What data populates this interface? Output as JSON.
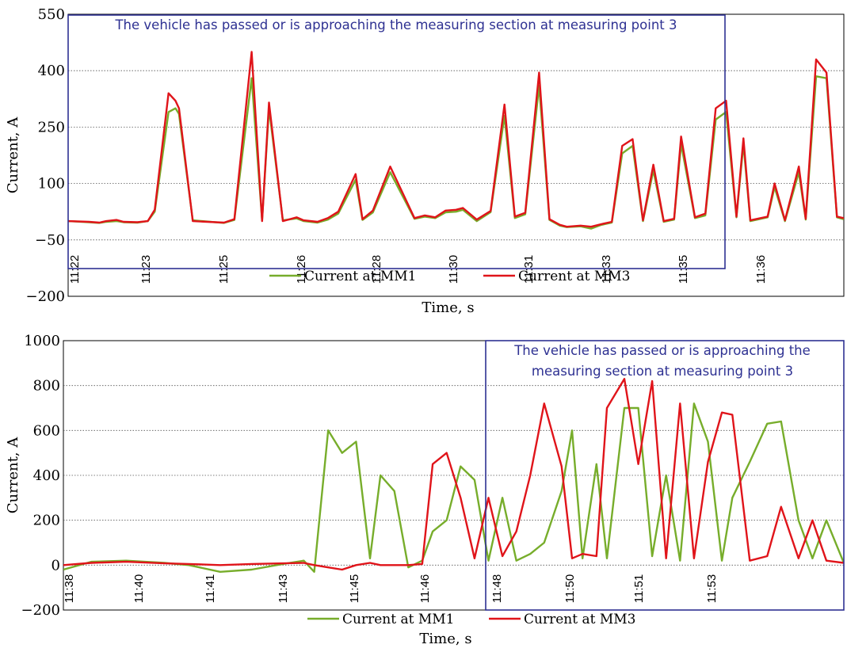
{
  "colors": {
    "mm1": "#77ad2b",
    "mm3": "#e0141a",
    "annotation": "#2e3192"
  },
  "chart_data": [
    {
      "type": "line",
      "xlabel": "Time, s",
      "ylabel": "Current, A",
      "ylim": [
        -200,
        550
      ],
      "y_ticks": [
        "550",
        "400",
        "250",
        "100",
        "−50",
        "−200"
      ],
      "x_tick_labels": [
        "11:22",
        "11:23",
        "11:25",
        "11:26",
        "11:28",
        "11:30",
        "11:31",
        "11:33",
        "11:35",
        "11:36"
      ],
      "grid": "horizontal dotted",
      "legend": "bottom-center",
      "series": [
        {
          "name": "Current at MM1",
          "color": "#77ad2b",
          "x": [
            0,
            0.6,
            0.9,
            1.1,
            1.4,
            1.6,
            2.0,
            2.3,
            2.5,
            2.9,
            3.1,
            3.2,
            3.6,
            4.5,
            4.8,
            5.3,
            5.6,
            5.8,
            6.2,
            6.6,
            6.8,
            7.2,
            7.5,
            7.8,
            8.3,
            8.5,
            8.8,
            9.3,
            10.0,
            10.3,
            10.6,
            10.9,
            11.2,
            11.4,
            11.8,
            12.2,
            12.6,
            12.9,
            13.2,
            13.6,
            13.9,
            14.2,
            14.4,
            14.8,
            15.1,
            15.4,
            15.7,
            16.0,
            16.3,
            16.6,
            16.9,
            17.2,
            17.5,
            17.7,
            18.1,
            18.4,
            18.7,
            19.0,
            19.3,
            19.5,
            19.7,
            20.2,
            20.4,
            20.7,
            21.1,
            21.3,
            21.6,
            21.9,
            22.2,
            22.4
          ],
          "y": [
            0,
            -3,
            -5,
            -2,
            0,
            -3,
            -4,
            0,
            25,
            290,
            300,
            285,
            2,
            -5,
            3,
            380,
            2,
            300,
            2,
            7,
            0,
            -4,
            4,
            20,
            110,
            3,
            23,
            130,
            6,
            12,
            8,
            23,
            25,
            30,
            0,
            24,
            280,
            8,
            18,
            360,
            3,
            -12,
            -16,
            -14,
            -20,
            -10,
            -4,
            180,
            200,
            0,
            135,
            -2,
            4,
            205,
            8,
            15,
            270,
            290,
            10,
            205,
            0,
            10,
            90,
            0,
            130,
            4,
            385,
            380,
            10,
            5
          ]
        },
        {
          "name": "Current at MM3",
          "color": "#e0141a",
          "x": [
            0,
            0.6,
            0.9,
            1.1,
            1.4,
            1.6,
            2.0,
            2.3,
            2.5,
            2.9,
            3.1,
            3.2,
            3.6,
            4.5,
            4.8,
            5.3,
            5.6,
            5.8,
            6.2,
            6.6,
            6.8,
            7.2,
            7.5,
            7.8,
            8.3,
            8.5,
            8.8,
            9.3,
            10.0,
            10.3,
            10.6,
            10.9,
            11.2,
            11.4,
            11.8,
            12.2,
            12.6,
            12.9,
            13.2,
            13.6,
            13.9,
            14.2,
            14.4,
            14.8,
            15.1,
            15.4,
            15.7,
            16.0,
            16.3,
            16.6,
            16.9,
            17.2,
            17.5,
            17.7,
            18.1,
            18.4,
            18.7,
            19.0,
            19.3,
            19.5,
            19.7,
            20.2,
            20.4,
            20.7,
            21.1,
            21.3,
            21.6,
            21.9,
            22.2,
            22.4
          ],
          "y": [
            0,
            -2,
            -4,
            0,
            3,
            -2,
            -3,
            0,
            30,
            340,
            320,
            300,
            0,
            -4,
            5,
            450,
            0,
            315,
            0,
            10,
            2,
            -2,
            8,
            25,
            125,
            5,
            28,
            145,
            8,
            15,
            10,
            28,
            30,
            35,
            4,
            27,
            310,
            12,
            22,
            395,
            5,
            -10,
            -15,
            -12,
            -15,
            -8,
            -2,
            200,
            218,
            2,
            150,
            0,
            6,
            225,
            10,
            20,
            300,
            320,
            12,
            220,
            2,
            12,
            100,
            2,
            145,
            6,
            430,
            395,
            12,
            8
          ]
        }
      ],
      "annotation": "The vehicle has passed or is approaching the measuring section at measuring point 3"
    },
    {
      "type": "line",
      "xlabel": "Time, s",
      "ylabel": "Current, A",
      "ylim": [
        -200,
        1000
      ],
      "y_ticks": [
        "1000",
        "800",
        "600",
        "400",
        "200",
        "0",
        "−200"
      ],
      "x_tick_labels": [
        "11:38",
        "11:40",
        "11:41",
        "11:43",
        "11:45",
        "11:46",
        "11:48",
        "11:50",
        "11:51",
        "11:53"
      ],
      "grid": "horizontal dotted",
      "legend": "bottom-center",
      "series": [
        {
          "name": "Current at MM1",
          "color": "#77ad2b",
          "x": [
            0,
            0.8,
            1.8,
            2.9,
            3.6,
            4.5,
            5.4,
            6.3,
            6.9,
            7.2,
            7.6,
            8.0,
            8.4,
            8.8,
            9.1,
            9.5,
            9.9,
            10.3,
            10.6,
            11.0,
            11.4,
            11.8,
            12.2,
            12.6,
            13.0,
            13.4,
            13.8,
            14.3,
            14.6,
            14.9,
            15.3,
            15.6,
            16.1,
            16.5,
            16.9,
            17.3,
            17.7,
            18.1,
            18.5,
            18.9,
            19.2,
            19.7,
            20.2,
            20.6,
            21.1,
            21.5,
            21.9,
            22.4
          ],
          "y": [
            -20,
            15,
            20,
            10,
            0,
            -30,
            -20,
            5,
            20,
            -30,
            600,
            500,
            550,
            30,
            400,
            330,
            -10,
            20,
            150,
            200,
            440,
            380,
            20,
            300,
            20,
            50,
            100,
            330,
            600,
            30,
            450,
            30,
            700,
            700,
            40,
            400,
            20,
            720,
            550,
            20,
            300,
            460,
            630,
            640,
            200,
            30,
            200,
            10
          ]
        },
        {
          "name": "Current at MM3",
          "color": "#e0141a",
          "x": [
            0,
            0.8,
            1.8,
            2.9,
            3.6,
            4.5,
            5.4,
            6.3,
            6.9,
            7.2,
            7.6,
            8.0,
            8.4,
            8.8,
            9.1,
            9.5,
            9.9,
            10.3,
            10.6,
            11.0,
            11.4,
            11.8,
            12.2,
            12.6,
            13.0,
            13.4,
            13.8,
            14.3,
            14.6,
            14.9,
            15.3,
            15.6,
            16.1,
            16.5,
            16.9,
            17.3,
            17.7,
            18.1,
            18.5,
            18.9,
            19.2,
            19.7,
            20.2,
            20.6,
            21.1,
            21.5,
            21.9,
            22.4
          ],
          "y": [
            0,
            10,
            15,
            8,
            5,
            0,
            5,
            8,
            10,
            0,
            -10,
            -20,
            0,
            10,
            0,
            0,
            0,
            5,
            450,
            500,
            300,
            30,
            300,
            40,
            150,
            400,
            720,
            440,
            30,
            50,
            40,
            700,
            830,
            450,
            820,
            30,
            720,
            30,
            460,
            680,
            670,
            20,
            40,
            260,
            30,
            200,
            20,
            10
          ]
        }
      ],
      "annotation": "The vehicle has passed or is approaching the measuring section at measuring point 3"
    }
  ]
}
